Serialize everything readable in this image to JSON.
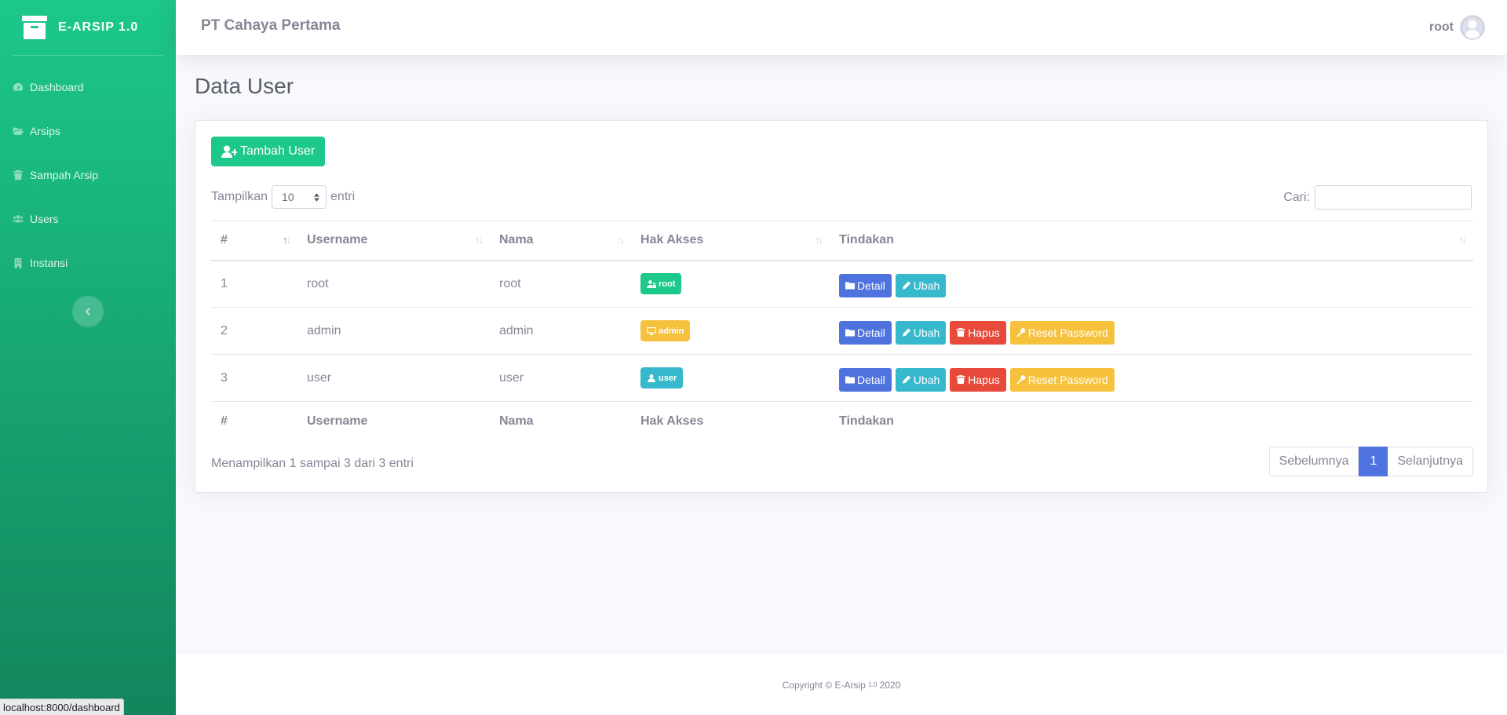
{
  "brand": {
    "title": "E-ARSIP 1.0",
    "icon": "archive-icon"
  },
  "sidebar": {
    "items": [
      {
        "label": "Dashboard",
        "icon": "tachometer-icon"
      },
      {
        "label": "Arsips",
        "icon": "folder-open-icon"
      },
      {
        "label": "Sampah Arsip",
        "icon": "trash-icon"
      },
      {
        "label": "Users",
        "icon": "users-icon"
      },
      {
        "label": "Instansi",
        "icon": "building-icon"
      }
    ],
    "toggle_icon": "chevron-left-icon"
  },
  "topbar": {
    "company": "PT Cahaya Pertama",
    "user": "root"
  },
  "page": {
    "title": "Data User"
  },
  "toolbar": {
    "add_label": "Tambah User"
  },
  "length": {
    "prefix": "Tampilkan",
    "value": "10",
    "suffix": "entri"
  },
  "search": {
    "label": "Cari:",
    "value": ""
  },
  "table": {
    "columns": [
      "#",
      "Username",
      "Nama",
      "Hak Akses",
      "Tindakan"
    ],
    "rows": [
      {
        "no": "1",
        "username": "root",
        "nama": "root",
        "role": "root"
      },
      {
        "no": "2",
        "username": "admin",
        "nama": "admin",
        "role": "admin"
      },
      {
        "no": "3",
        "username": "user",
        "nama": "user",
        "role": "user"
      }
    ],
    "actions": {
      "detail": "Detail",
      "ubah": "Ubah",
      "hapus": "Hapus",
      "reset": "Reset Password"
    }
  },
  "info": "Menampilkan 1 sampai 3 dari 3 entri",
  "pagination": {
    "prev": "Sebelumnya",
    "current": "1",
    "next": "Selanjutnya"
  },
  "footer": {
    "text": "Copyright © E-Arsip",
    "version": "1.0",
    "year": "2020"
  },
  "statusbar": "localhost:8000/dashboard",
  "colors": {
    "primary": "#4e73df",
    "success": "#1cc88a",
    "info": "#36b9cc",
    "danger": "#e74a3b",
    "warning": "#f6c23e"
  }
}
